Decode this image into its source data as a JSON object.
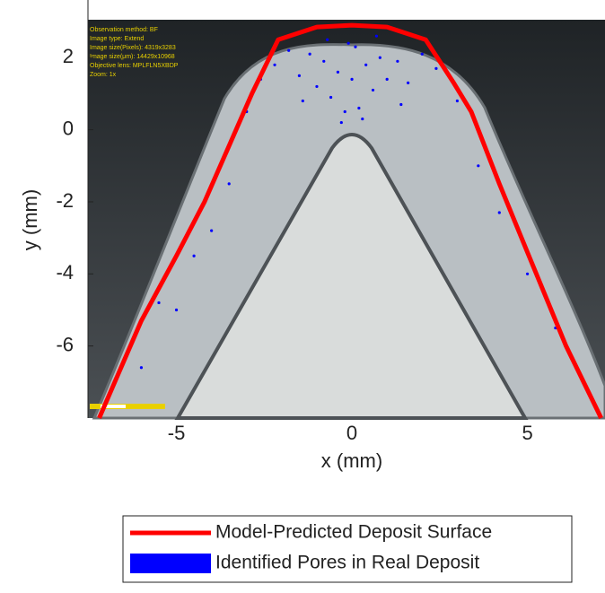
{
  "chart_data": {
    "type": "line",
    "xlabel": "x (mm)",
    "ylabel": "y (mm)",
    "xlim": [
      -7.52,
      7.21
    ],
    "ylim": [
      -8,
      3.6
    ],
    "xticks": [
      -5,
      0,
      5
    ],
    "yticks": [
      -6,
      -4,
      -2,
      0,
      2
    ],
    "annotations": [
      "Observation method: BF",
      "Image type: Extend",
      "Image size(Pixels): 4319x3283",
      "Image size(μm): 14429x10968",
      "Objective lens: MPLFLN5XBDP",
      "Zoom: 1x"
    ],
    "series": [
      {
        "name": "Model-Predicted Deposit Surface",
        "color": "#ff0000",
        "x": [
          -7.2,
          -6,
          -5,
          -4.2,
          -3.3,
          -2.85,
          -2.1,
          -1,
          0,
          1,
          2.1,
          2.9,
          3.4,
          4.2,
          5,
          6.1,
          7.1
        ],
        "y": [
          -8,
          -5.3,
          -3.5,
          -2,
          0,
          1,
          2.5,
          2.85,
          2.9,
          2.85,
          2.5,
          1.3,
          0.5,
          -1.5,
          -3.4,
          -6,
          -8
        ]
      },
      {
        "name": "Identified Pores in Real Deposit",
        "color": "#0000ff",
        "marker": "pore",
        "x": [
          -2.2,
          -1.8,
          -1.5,
          -1.2,
          -1,
          -0.8,
          -0.6,
          -0.4,
          -0.2,
          0,
          0.2,
          0.4,
          0.6,
          0.8,
          1,
          1.3,
          1.6,
          2,
          2.4,
          -2.6,
          -3,
          -3.5,
          -4,
          -4.5,
          -5,
          -5.5,
          -6,
          3,
          3.6,
          4.2,
          5,
          5.8,
          -0.3,
          0.3,
          -0.1,
          0.1,
          -1.4,
          1.4,
          -0.7,
          0.7
        ],
        "y": [
          1.8,
          2.2,
          1.5,
          2.1,
          1.2,
          1.9,
          0.9,
          1.6,
          0.5,
          1.4,
          0.6,
          1.8,
          1.1,
          2,
          1.4,
          1.9,
          1.3,
          2.1,
          1.7,
          1.4,
          0.5,
          -1.5,
          -2.8,
          -3.5,
          -5,
          -4.8,
          -6.6,
          0.8,
          -1,
          -2.3,
          -4,
          -5.5,
          0.2,
          0.3,
          2.4,
          2.3,
          0.8,
          0.7,
          2.5,
          2.6
        ]
      }
    ]
  }
}
